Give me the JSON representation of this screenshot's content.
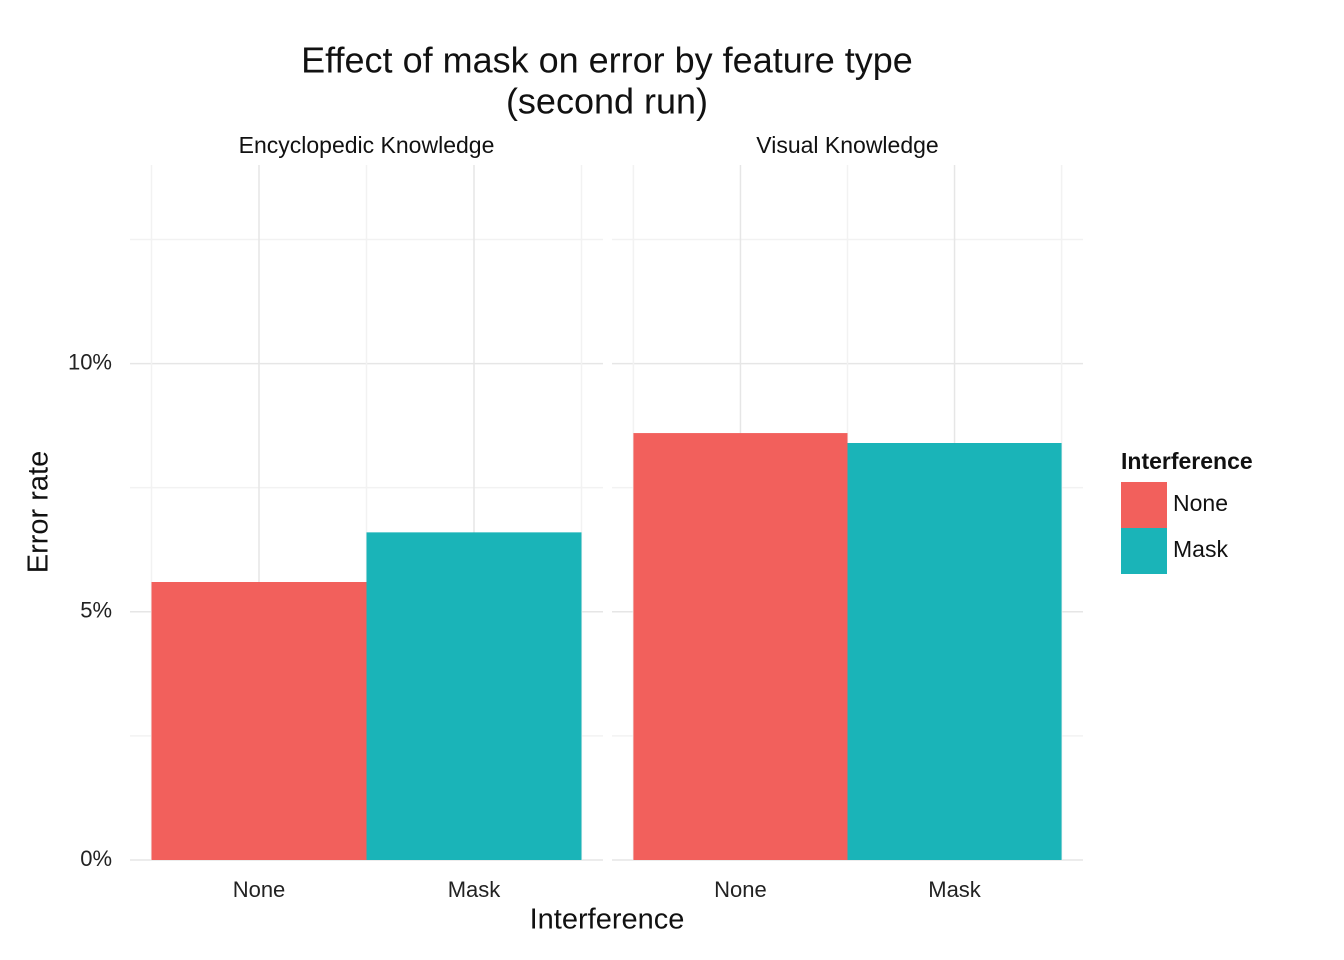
{
  "chart_data": {
    "type": "bar",
    "title": "Effect of mask on error by feature type",
    "subtitle": "(second run)",
    "x_label": "Interference",
    "y_label": "Error rate",
    "facets": [
      {
        "title": "Encyclopedic Knowledge",
        "categories": [
          "None",
          "Mask"
        ],
        "values": [
          5.6,
          6.6
        ]
      },
      {
        "title": "Visual Knowledge",
        "categories": [
          "None",
          "Mask"
        ],
        "values": [
          8.6,
          8.4
        ]
      }
    ],
    "colors": [
      "#F2605C",
      "#1AB4B8"
    ],
    "legend": {
      "title": "Interference",
      "items": [
        "None",
        "Mask"
      ],
      "position": "right"
    },
    "ylim": [
      0,
      14
    ],
    "yticks": [
      {
        "value": 0,
        "label": "0%"
      },
      {
        "value": 5,
        "label": "5%"
      },
      {
        "value": 10,
        "label": "10%"
      }
    ],
    "y_minor_ticks": [
      2.5,
      7.5,
      12.5
    ],
    "grid": true
  }
}
